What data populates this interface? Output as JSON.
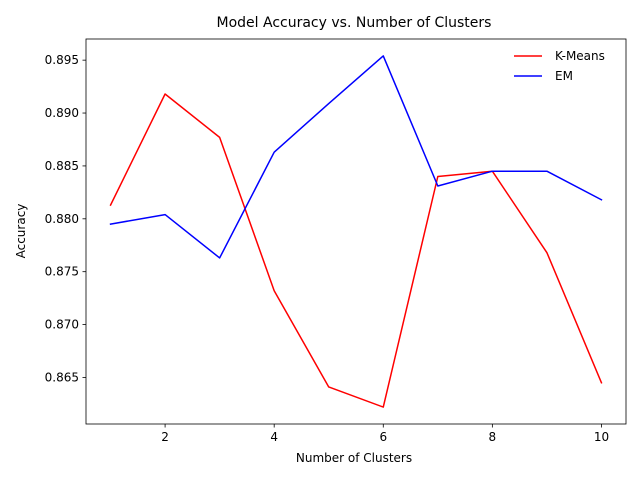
{
  "chart_data": {
    "type": "line",
    "title": "Model Accuracy vs. Number of Clusters",
    "xlabel": "Number of Clusters",
    "ylabel": "Accuracy",
    "xlim": [
      0.55,
      10.45
    ],
    "ylim": [
      0.8606,
      0.897
    ],
    "xticks": [
      2,
      4,
      6,
      8,
      10
    ],
    "yticks": [
      0.865,
      0.87,
      0.875,
      0.88,
      0.885,
      0.89,
      0.895
    ],
    "xtick_labels": [
      "2",
      "4",
      "6",
      "8",
      "10"
    ],
    "ytick_labels": [
      "0.865",
      "0.870",
      "0.875",
      "0.880",
      "0.885",
      "0.890",
      "0.895"
    ],
    "grid": false,
    "legend_position": "top-right",
    "series": [
      {
        "name": "K-Means",
        "color": "#ff0000",
        "x": [
          1,
          2,
          3,
          4,
          5,
          6,
          7,
          8,
          9,
          10
        ],
        "y": [
          0.8813,
          0.8918,
          0.8877,
          0.8732,
          0.8641,
          0.8622,
          0.884,
          0.8845,
          0.8768,
          0.8645
        ]
      },
      {
        "name": "EM",
        "color": "#0000ff",
        "x": [
          1,
          2,
          3,
          4,
          5,
          6,
          7,
          8,
          9,
          10
        ],
        "y": [
          0.8795,
          0.8804,
          0.8763,
          0.8863,
          0.8909,
          0.8954,
          0.8831,
          0.8845,
          0.8845,
          0.8818
        ]
      }
    ]
  }
}
